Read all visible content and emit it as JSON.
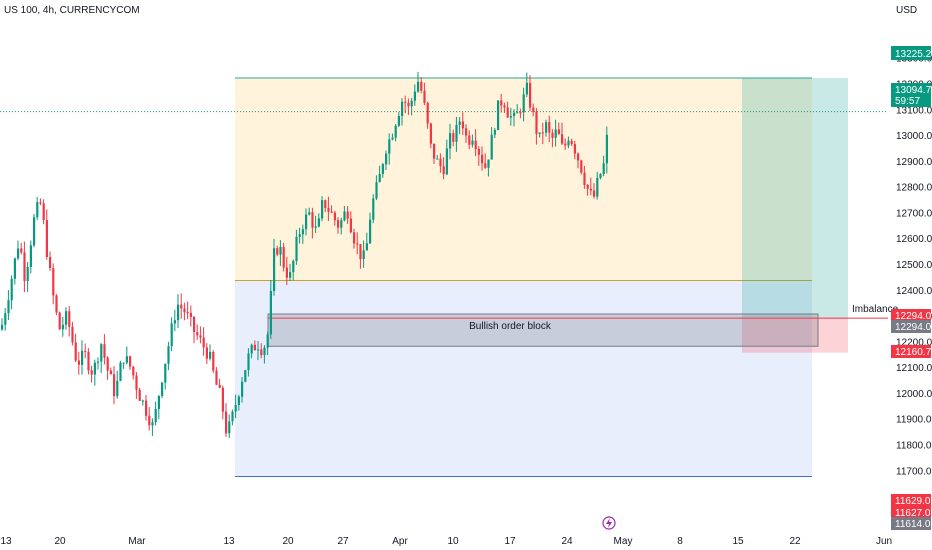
{
  "header": {
    "symbol_title": "US 100, 4h, CURRENCYCOM",
    "currency": "USD"
  },
  "price_tags": {
    "target": "13225.2",
    "last_price": "13094.7",
    "countdown": "59:57",
    "ob_top": "12294.0",
    "ob_top2": "12294.0",
    "stop": "12160.7",
    "low1": "11629.0",
    "low2": "11627.0",
    "low3": "11614.0"
  },
  "annotations": {
    "order_block": "Bullish order block",
    "imbalance": "Imbalance"
  },
  "colors": {
    "up": "#089981",
    "down": "#f23645",
    "fib_zone": "#fff3dc",
    "lower_zone": "#e8eefc",
    "order_block": "#d1d4dc",
    "profit": "#26a69a",
    "loss": "#f23645",
    "last_price": "#089981",
    "target": "#089981"
  },
  "chart_data": {
    "type": "candlestick",
    "ylim": [
      11550,
      13450
    ],
    "y_ticks": [
      11700,
      11800,
      11900,
      12000,
      12100,
      12200,
      12300,
      12400,
      12500,
      12600,
      12700,
      12800,
      12900,
      13000,
      13100,
      13200,
      13300
    ],
    "x_ticks": [
      "13",
      "20",
      "Mar",
      "13",
      "20",
      "27",
      "Apr",
      "10",
      "17",
      "24",
      "May",
      "8",
      "15",
      "22",
      "Jun"
    ],
    "path": [
      [
        0,
        12250
      ],
      [
        8,
        12400
      ],
      [
        18,
        12600
      ],
      [
        24,
        12450
      ],
      [
        34,
        12700
      ],
      [
        40,
        12740
      ],
      [
        46,
        12550
      ],
      [
        52,
        12380
      ],
      [
        58,
        12250
      ],
      [
        66,
        12300
      ],
      [
        76,
        12120
      ],
      [
        84,
        12150
      ],
      [
        92,
        12080
      ],
      [
        100,
        12200
      ],
      [
        106,
        12100
      ],
      [
        114,
        12000
      ],
      [
        122,
        12150
      ],
      [
        130,
        12100
      ],
      [
        138,
        12000
      ],
      [
        146,
        11930
      ],
      [
        152,
        11870
      ],
      [
        160,
        12050
      ],
      [
        168,
        12200
      ],
      [
        176,
        12350
      ],
      [
        184,
        12320
      ],
      [
        192,
        12250
      ],
      [
        200,
        12200
      ],
      [
        208,
        12150
      ],
      [
        214,
        12050
      ],
      [
        220,
        11980
      ],
      [
        226,
        11840
      ],
      [
        232,
        11920
      ],
      [
        240,
        12050
      ],
      [
        248,
        12150
      ],
      [
        256,
        12200
      ],
      [
        262,
        12170
      ],
      [
        268,
        12250
      ],
      [
        272,
        12530
      ],
      [
        278,
        12580
      ],
      [
        284,
        12480
      ],
      [
        290,
        12450
      ],
      [
        294,
        12560
      ],
      [
        300,
        12650
      ],
      [
        308,
        12700
      ],
      [
        316,
        12620
      ],
      [
        322,
        12750
      ],
      [
        330,
        12700
      ],
      [
        338,
        12650
      ],
      [
        346,
        12720
      ],
      [
        352,
        12620
      ],
      [
        358,
        12550
      ],
      [
        364,
        12520
      ],
      [
        370,
        12720
      ],
      [
        378,
        12830
      ],
      [
        384,
        12950
      ],
      [
        390,
        13000
      ],
      [
        396,
        13080
      ],
      [
        402,
        13150
      ],
      [
        408,
        13100
      ],
      [
        414,
        13190
      ],
      [
        418,
        13220
      ],
      [
        424,
        13100
      ],
      [
        430,
        12950
      ],
      [
        436,
        12900
      ],
      [
        442,
        12870
      ],
      [
        448,
        12980
      ],
      [
        454,
        13000
      ],
      [
        460,
        13080
      ],
      [
        466,
        12980
      ],
      [
        472,
        13010
      ],
      [
        478,
        12940
      ],
      [
        484,
        12880
      ],
      [
        490,
        12970
      ],
      [
        496,
        13100
      ],
      [
        502,
        13150
      ],
      [
        508,
        13080
      ],
      [
        514,
        13060
      ],
      [
        520,
        13120
      ],
      [
        526,
        13180
      ],
      [
        532,
        13080
      ],
      [
        538,
        12980
      ],
      [
        544,
        13050
      ],
      [
        550,
        12980
      ],
      [
        556,
        13020
      ],
      [
        562,
        12940
      ],
      [
        568,
        13010
      ],
      [
        574,
        12950
      ],
      [
        580,
        12880
      ],
      [
        586,
        12800
      ],
      [
        592,
        12750
      ],
      [
        598,
        12840
      ],
      [
        604,
        12900
      ],
      [
        608,
        13094
      ]
    ],
    "fib_zone": {
      "x_range": [
        235,
        812
      ],
      "price_range": [
        12440,
        13225
      ]
    },
    "lower_zone": {
      "x_range": [
        235,
        812
      ],
      "price_range": [
        11680,
        12440
      ]
    },
    "order_block": {
      "x_range": [
        268,
        818
      ],
      "price_range": [
        12185,
        12310
      ]
    },
    "profit_zone": {
      "x_range": [
        742,
        848
      ],
      "price_range": [
        12294,
        13225
      ]
    },
    "loss_zone": {
      "x_range": [
        742,
        848
      ],
      "price_range": [
        12160,
        12294
      ]
    },
    "last_price": 13094.7,
    "target_price": 13225.2,
    "imbalance_price": 12294.0
  }
}
